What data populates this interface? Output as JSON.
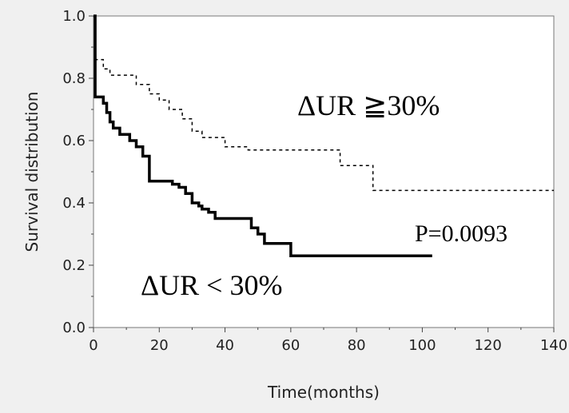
{
  "chart_data": {
    "type": "line",
    "title": "",
    "xlabel": "Time(months)",
    "ylabel": "Survival distribution",
    "xlim": [
      0,
      140
    ],
    "ylim": [
      0.0,
      1.0
    ],
    "x_ticks": [
      "0",
      "20",
      "40",
      "60",
      "80",
      "100",
      "120",
      "140"
    ],
    "y_ticks": [
      "0.0",
      "0.2",
      "0.4",
      "0.6",
      "0.8",
      "1.0"
    ],
    "grid": false,
    "series": [
      {
        "name": "ΔUR ≧30%",
        "line_style": "dashed",
        "color": "#000000",
        "steps": [
          [
            0,
            1.0
          ],
          [
            0.5,
            0.86
          ],
          [
            3,
            0.83
          ],
          [
            5,
            0.81
          ],
          [
            13,
            0.78
          ],
          [
            17,
            0.75
          ],
          [
            20,
            0.73
          ],
          [
            23,
            0.7
          ],
          [
            27,
            0.67
          ],
          [
            30,
            0.63
          ],
          [
            33,
            0.61
          ],
          [
            40,
            0.58
          ],
          [
            47,
            0.57
          ],
          [
            75,
            0.52
          ],
          [
            85,
            0.44
          ],
          [
            140,
            0.44
          ]
        ]
      },
      {
        "name": "ΔUR < 30%",
        "line_style": "solid",
        "color": "#000000",
        "steps": [
          [
            0,
            1.0
          ],
          [
            0.5,
            0.74
          ],
          [
            3,
            0.72
          ],
          [
            4,
            0.69
          ],
          [
            5,
            0.66
          ],
          [
            6,
            0.64
          ],
          [
            8,
            0.62
          ],
          [
            11,
            0.6
          ],
          [
            13,
            0.58
          ],
          [
            15,
            0.55
          ],
          [
            17,
            0.47
          ],
          [
            24,
            0.46
          ],
          [
            26,
            0.45
          ],
          [
            28,
            0.43
          ],
          [
            30,
            0.4
          ],
          [
            32,
            0.39
          ],
          [
            33,
            0.38
          ],
          [
            35,
            0.37
          ],
          [
            37,
            0.35
          ],
          [
            48,
            0.32
          ],
          [
            50,
            0.3
          ],
          [
            52,
            0.27
          ],
          [
            60,
            0.23
          ],
          [
            103,
            0.23
          ]
        ]
      }
    ],
    "annotations": [
      "ΔUR ≧30%",
      "P=0.0093",
      "ΔUR < 30%"
    ]
  }
}
